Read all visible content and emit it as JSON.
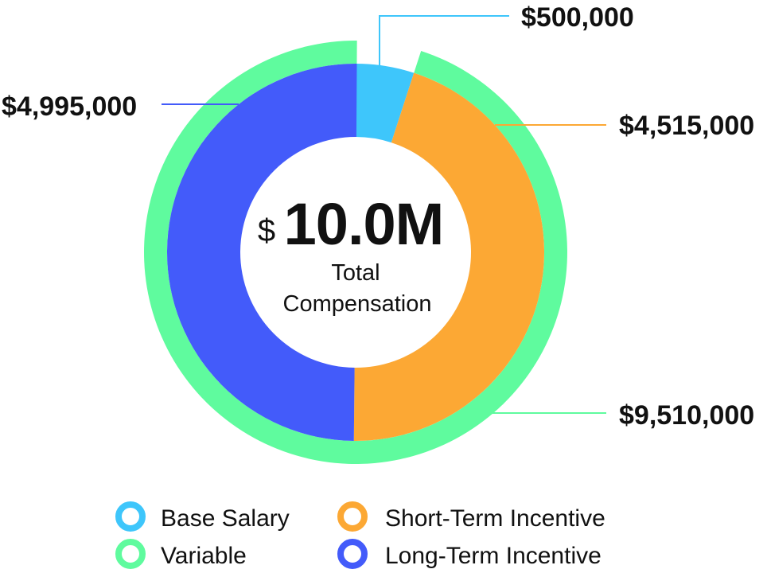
{
  "center": {
    "currency_symbol": "$",
    "total_value": "10.0M",
    "label_line1": "Total",
    "label_line2": "Compensation"
  },
  "chart_data": {
    "type": "donut",
    "title": "",
    "total": 10000000,
    "inner_ring": [
      {
        "name": "Base Salary",
        "value": 500000,
        "label": "$500,000",
        "color": "#3ec6fb"
      },
      {
        "name": "Short-Term Incentive",
        "value": 4515000,
        "label": "$4,515,000",
        "color": "#fca834"
      },
      {
        "name": "Long-Term Incentive",
        "value": 4995000,
        "label": "$4,995,000",
        "color": "#435bfa"
      }
    ],
    "outer_ring": [
      {
        "name": "Variable",
        "value": 9510000,
        "label": "$9,510,000",
        "color": "#5ffb9e"
      }
    ]
  },
  "legend": [
    {
      "name": "Base Salary",
      "color": "#3ec6fb"
    },
    {
      "name": "Short-Term Incentive",
      "color": "#fca834"
    },
    {
      "name": "Variable",
      "color": "#5ffb9e"
    },
    {
      "name": "Long-Term Incentive",
      "color": "#435bfa"
    }
  ]
}
